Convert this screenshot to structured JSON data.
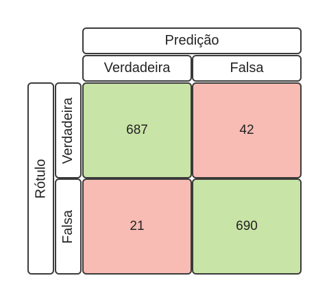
{
  "header": {
    "predicted_label": "Predição",
    "actual_label": "Rótulo"
  },
  "columns": [
    "Verdadeira",
    "Falsa"
  ],
  "rows": [
    "Verdadeira",
    "Falsa"
  ],
  "matrix": [
    [
      {
        "value": "687",
        "color": "#c9e4a7"
      },
      {
        "value": "42",
        "color": "#f8bcb4"
      }
    ],
    [
      {
        "value": "21",
        "color": "#f8bcb4"
      },
      {
        "value": "690",
        "color": "#c9e4a7"
      }
    ]
  ],
  "colors": {
    "correct": "#c9e4a7",
    "incorrect": "#f8bcb4",
    "border": "#3a3a3a"
  }
}
